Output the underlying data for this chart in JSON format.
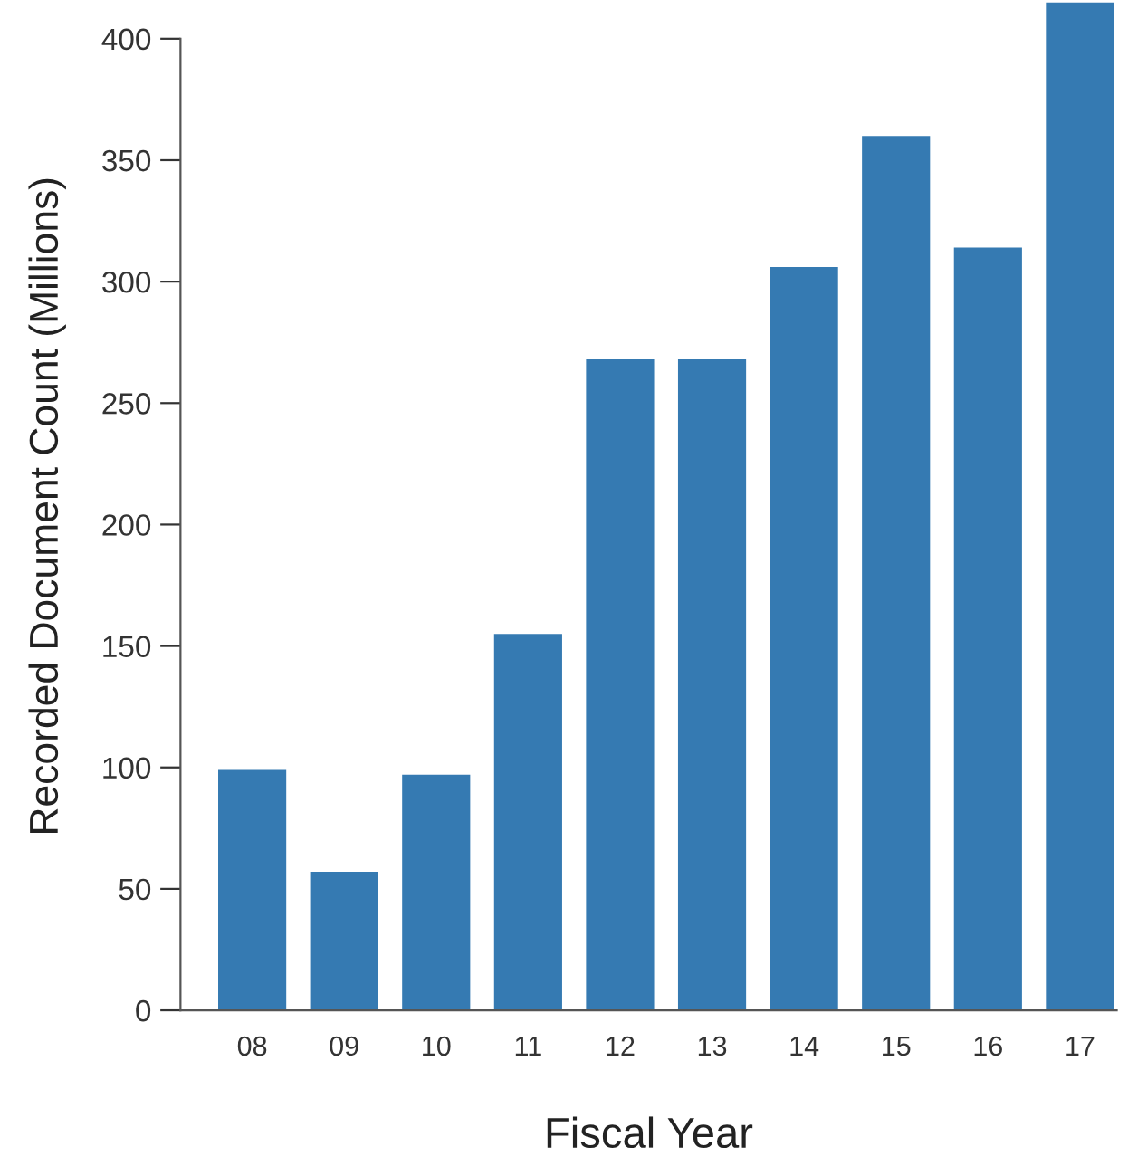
{
  "chart_data": {
    "type": "bar",
    "xlabel": "Fiscal Year",
    "ylabel": "Recorded Document Count (Millions)",
    "categories": [
      "08",
      "09",
      "10",
      "11",
      "12",
      "13",
      "14",
      "15",
      "16",
      "17"
    ],
    "values": [
      99,
      57,
      97,
      155,
      268,
      268,
      306,
      360,
      314,
      415
    ],
    "color": "#357ab2",
    "ylim": [
      0,
      415
    ],
    "yticks": [
      0,
      50,
      100,
      150,
      200,
      250,
      300,
      350,
      400
    ],
    "grid": false,
    "legend": false
  }
}
